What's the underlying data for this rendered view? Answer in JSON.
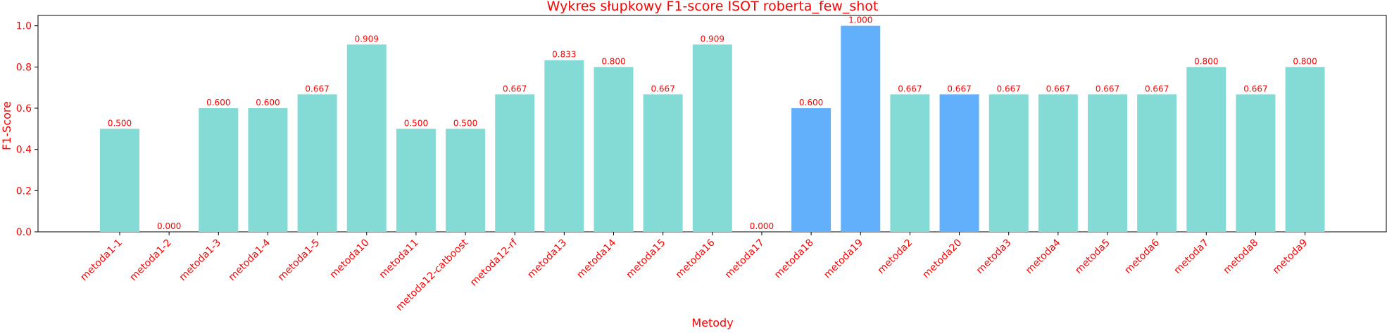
{
  "chart_data": {
    "type": "bar",
    "title": "Wykres słupkowy F1-score ISOT roberta_few_shot",
    "xlabel": "Metody",
    "ylabel": "F1-Score",
    "ylim": [
      0,
      1.05
    ],
    "yticks": [
      "0.0",
      "0.2",
      "0.4",
      "0.6",
      "0.8",
      "1.0"
    ],
    "grid": false,
    "legend": "none",
    "categories": [
      "metoda1-1",
      "metoda1-2",
      "metoda1-3",
      "metoda1-4",
      "metoda1-5",
      "metoda10",
      "metoda11",
      "metoda12-catboost",
      "metoda12-rf",
      "metoda13",
      "metoda14",
      "metoda15",
      "metoda16",
      "metoda17",
      "metoda18",
      "metoda19",
      "metoda2",
      "metoda20",
      "metoda3",
      "metoda4",
      "metoda5",
      "metoda6",
      "metoda7",
      "metoda8",
      "metoda9"
    ],
    "values": [
      0.5,
      0.0,
      0.6,
      0.6,
      0.667,
      0.909,
      0.5,
      0.5,
      0.667,
      0.833,
      0.8,
      0.667,
      0.909,
      0.0,
      0.6,
      1.0,
      0.667,
      0.667,
      0.667,
      0.667,
      0.667,
      0.667,
      0.8,
      0.667,
      0.8
    ],
    "value_labels": [
      "0.500",
      "0.000",
      "0.600",
      "0.600",
      "0.667",
      "0.909",
      "0.500",
      "0.500",
      "0.667",
      "0.833",
      "0.800",
      "0.667",
      "0.909",
      "0.000",
      "0.600",
      "1.000",
      "0.667",
      "0.667",
      "0.667",
      "0.667",
      "0.667",
      "0.667",
      "0.800",
      "0.667",
      "0.800"
    ],
    "highlighted": [
      "metoda18",
      "metoda19",
      "metoda20"
    ],
    "colors": {
      "bar": "#84dbd6",
      "highlight": "#62b0fb",
      "text": "#ff0000",
      "axis": "#000000"
    }
  }
}
